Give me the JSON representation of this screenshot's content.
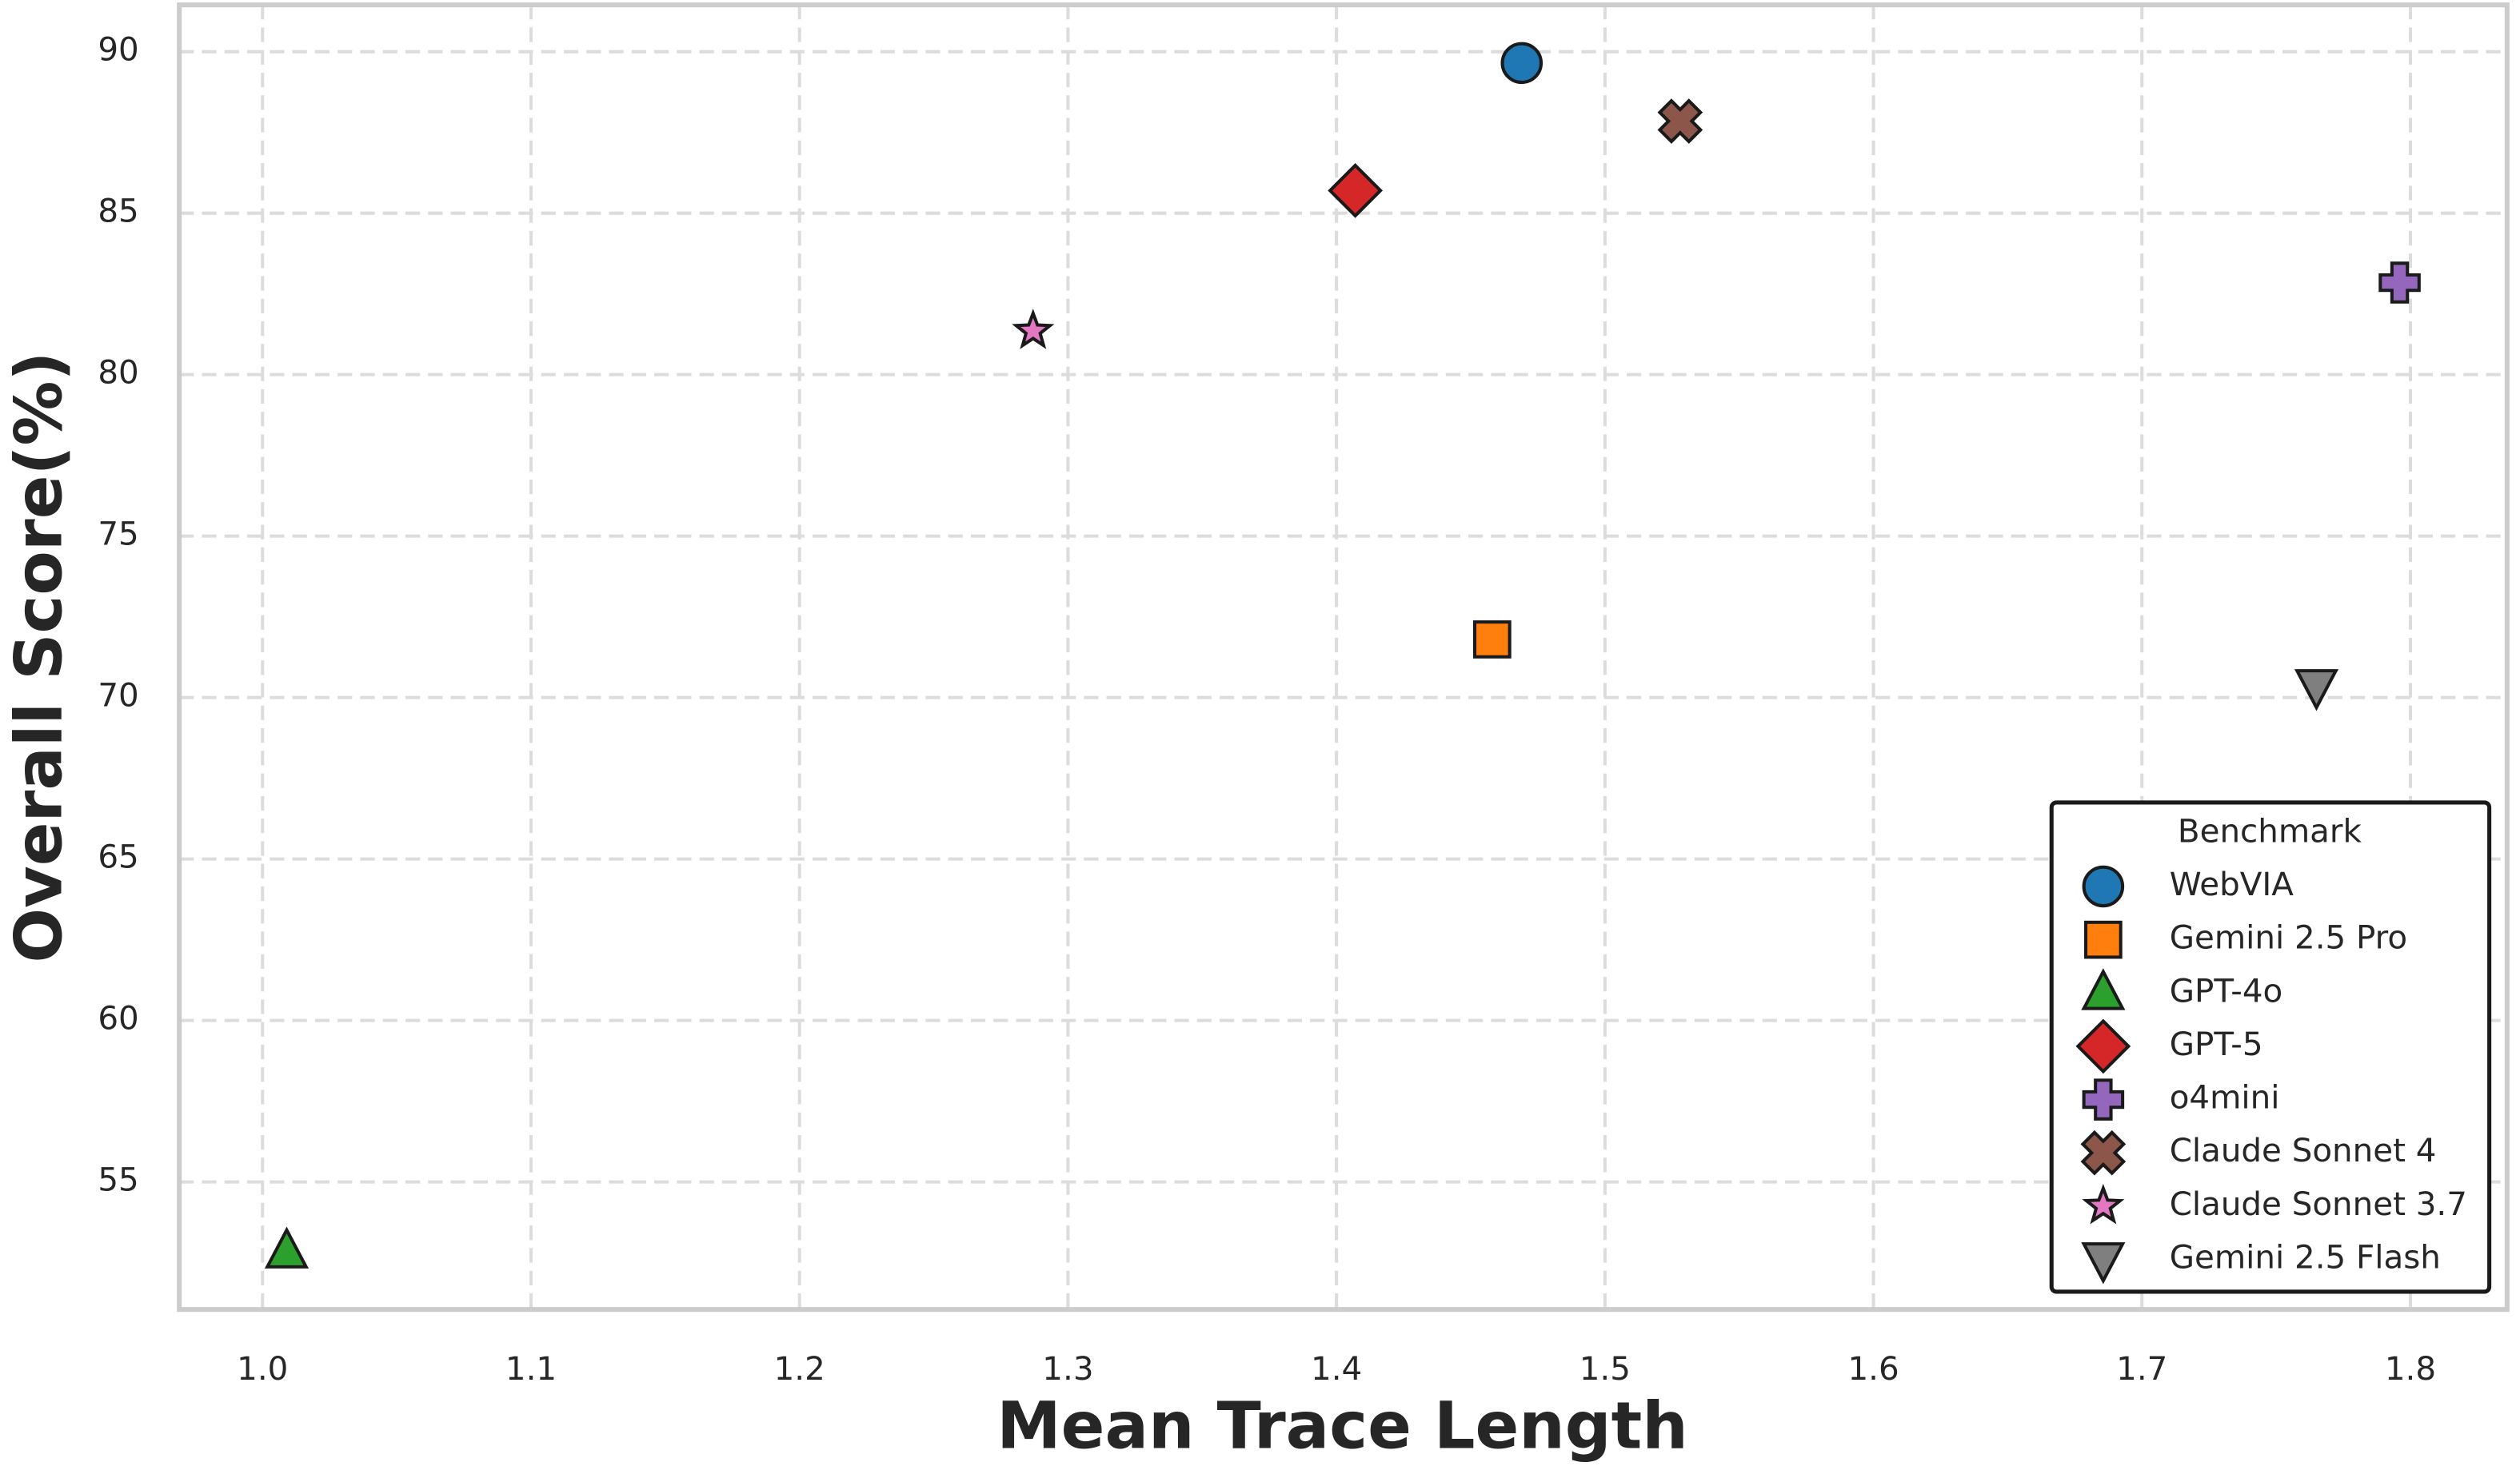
{
  "chart_data": {
    "type": "scatter",
    "x_label": "Mean Trace Length",
    "y_label": "Overall Score(%)",
    "xlim": [
      0.969,
      1.836
    ],
    "ylim": [
      51.05,
      91.45
    ],
    "xticks": [
      {
        "value": 1.0,
        "label": "1.0"
      },
      1.1,
      1.2,
      1.3,
      1.4,
      1.5,
      1.6,
      1.7,
      1.8
    ],
    "yticks": [
      55,
      60,
      65,
      70,
      75,
      80,
      85,
      90
    ],
    "grid": true,
    "legend_title": "Benchmark",
    "legend_position": "lower right",
    "series": [
      {
        "name": "WebVIA",
        "color": "#1f77b4",
        "marker": "circle",
        "x": [
          1.469
        ],
        "values": [
          89.65
        ]
      },
      {
        "name": "Gemini 2.5 Pro",
        "color": "#ff7f0e",
        "marker": "square",
        "x": [
          1.458
        ],
        "values": [
          71.8
        ]
      },
      {
        "name": "GPT-4o",
        "color": "#2ca02c",
        "marker": "triangle-up",
        "x": [
          1.009
        ],
        "values": [
          52.85
        ]
      },
      {
        "name": "GPT-5",
        "color": "#d62728",
        "marker": "diamond",
        "x": [
          1.407
        ],
        "values": [
          85.7
        ]
      },
      {
        "name": "o4mini",
        "color": "#9467bd",
        "marker": "plus",
        "x": [
          1.796
        ],
        "values": [
          82.85
        ]
      },
      {
        "name": "Claude Sonnet 4",
        "color": "#8c564b",
        "marker": "x",
        "x": [
          1.528
        ],
        "values": [
          87.85
        ]
      },
      {
        "name": "Claude Sonnet 3.7",
        "color": "#e377c2",
        "marker": "star",
        "x": [
          1.287
        ],
        "values": [
          81.35
        ]
      },
      {
        "name": "Gemini 2.5 Flash",
        "color": "#7f7f7f",
        "marker": "triangle-down",
        "x": [
          1.765
        ],
        "values": [
          70.35
        ]
      }
    ]
  }
}
